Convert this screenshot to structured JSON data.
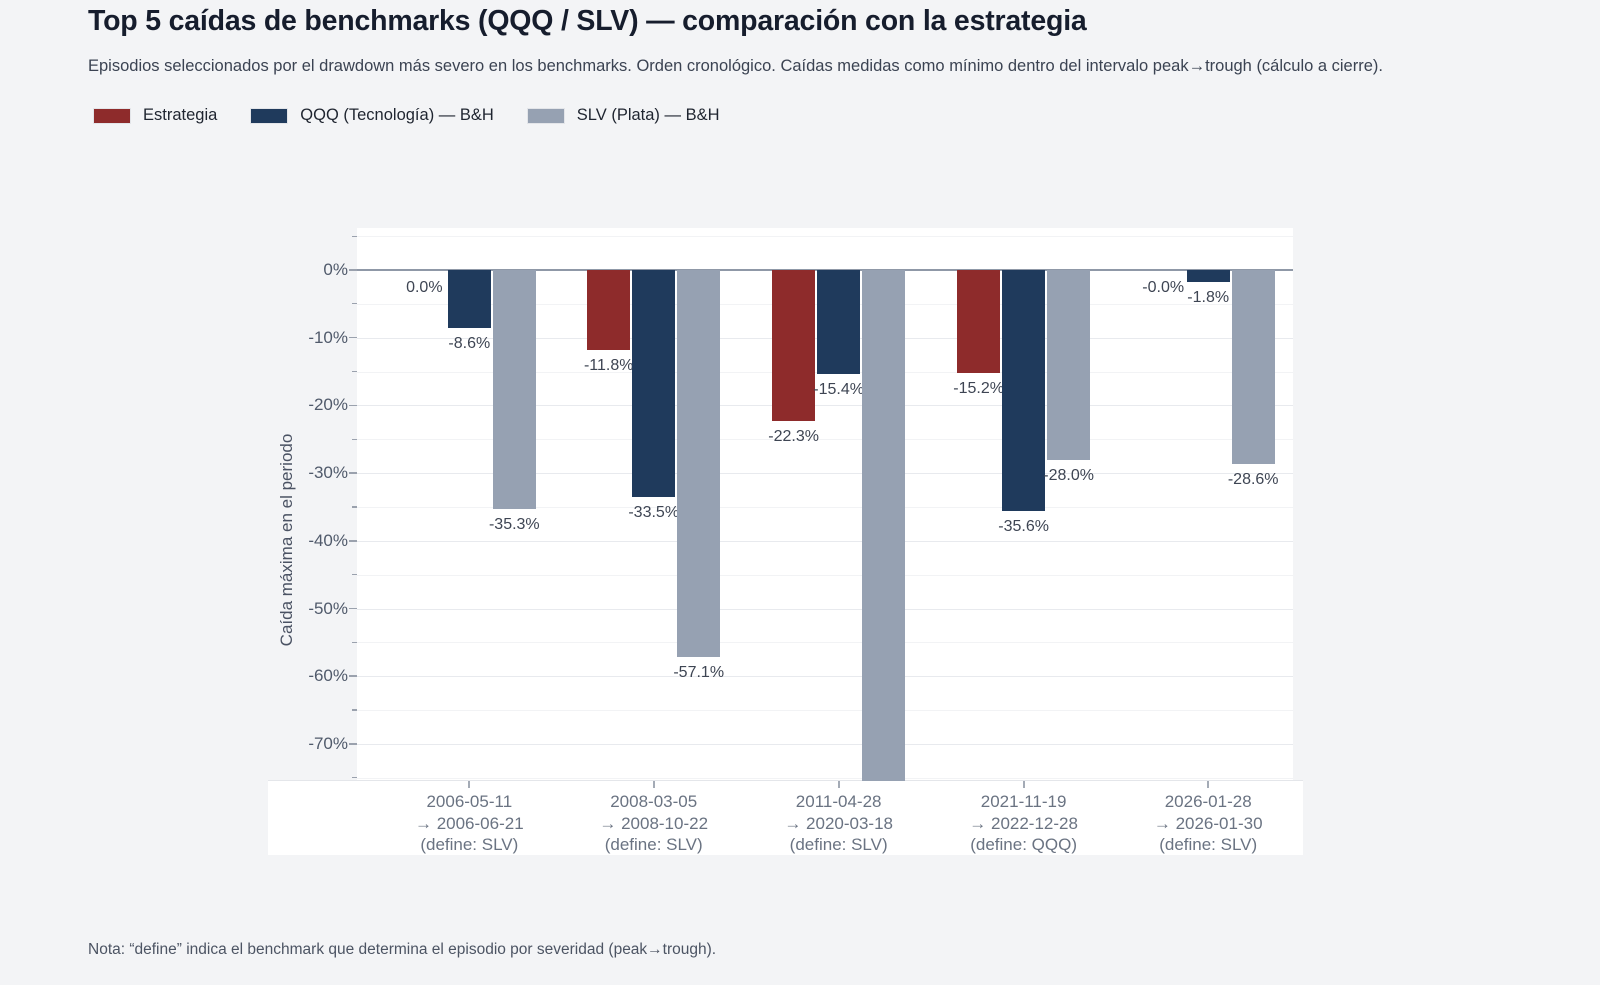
{
  "page": {
    "title": "Top 5 caídas de benchmarks (QQQ / SLV) — comparación con la estrategia",
    "subtitle": "Episodios seleccionados por el drawdown más severo en los benchmarks. Orden cronológico. Caídas medidas como mínimo dentro del intervalo peak→trough (cálculo a cierre).",
    "note": "Nota: “define” indica el benchmark que determina el episodio por severidad (peak→trough)."
  },
  "chart_data": {
    "type": "bar",
    "orientation": "vertical",
    "title": "Top 5 caídas de benchmarks (QQQ / SLV) — comparación con la estrategia",
    "ylabel": "Caída máxima en el periodo",
    "legend_position": "top-left",
    "grid": true,
    "y_axis": {
      "unit": "%",
      "top": 6.2,
      "bottom": -75.5,
      "major_tick_step": 10,
      "minor_tick_step": 5,
      "tick_labels": [
        "0%",
        "-10%",
        "-20%",
        "-30%",
        "-40%",
        "-50%",
        "-60%",
        "-70%"
      ]
    },
    "categories": [
      {
        "lines": [
          "2006-05-11",
          "→ 2006-06-21",
          "(define: SLV)"
        ]
      },
      {
        "lines": [
          "2008-03-05",
          "→ 2008-10-22",
          "(define: SLV)"
        ]
      },
      {
        "lines": [
          "2011-04-28",
          "→ 2020-03-18",
          "(define: SLV)"
        ]
      },
      {
        "lines": [
          "2021-11-19",
          "→ 2022-12-28",
          "(define: QQQ)"
        ]
      },
      {
        "lines": [
          "2026-01-28",
          "→ 2026-01-30",
          "(define: SLV)"
        ]
      }
    ],
    "series": [
      {
        "name": "Estrategia",
        "color": "#8e2b2b",
        "values": [
          0.0,
          -11.8,
          -22.3,
          -15.2,
          -0.0
        ],
        "labels": [
          "0.0%",
          "-11.8%",
          "-22.3%",
          "-15.2%",
          "-0.0%"
        ],
        "clipped_below_axis": [
          false,
          false,
          false,
          false,
          false
        ]
      },
      {
        "name": "QQQ (Tecnología) — B&H",
        "color": "#1f3a5c",
        "values": [
          -8.6,
          -33.5,
          -15.4,
          -35.6,
          -1.8
        ],
        "labels": [
          "-8.6%",
          "-33.5%",
          "-15.4%",
          "-35.6%",
          "-1.8%"
        ],
        "clipped_below_axis": [
          false,
          false,
          false,
          false,
          false
        ]
      },
      {
        "name": "SLV (Plata) — B&H",
        "color": "#96a1b2",
        "values": [
          -35.3,
          -57.1,
          null,
          -28.0,
          -28.6
        ],
        "labels": [
          "-35.3%",
          "-57.1%",
          null,
          "-28.0%",
          "-28.6%"
        ],
        "clipped_below_axis": [
          false,
          false,
          true,
          false,
          false
        ]
      }
    ]
  }
}
